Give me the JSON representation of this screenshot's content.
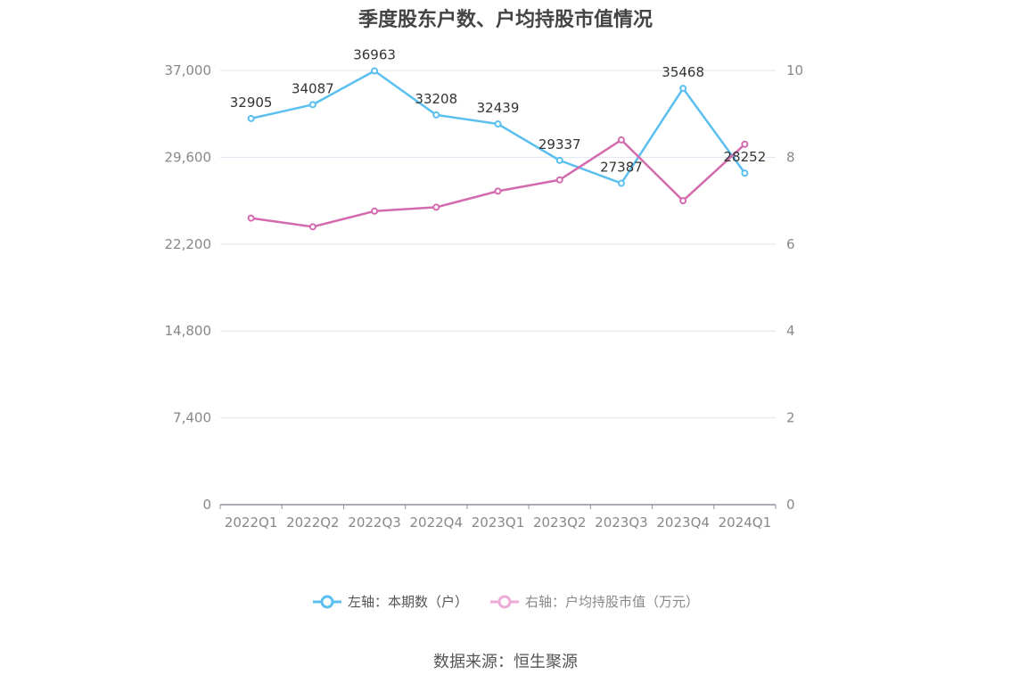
{
  "title": "季度股东户数、户均持股市值情况",
  "source": "数据来源：恒生聚源",
  "colors": {
    "left_series": "#5bbfef",
    "right_series": "#d46aae",
    "grid": "#e0e3ef",
    "axis": "#8c8fa8"
  },
  "chart_data": {
    "type": "line",
    "categories": [
      "2022Q1",
      "2022Q2",
      "2022Q3",
      "2022Q4",
      "2023Q1",
      "2023Q2",
      "2023Q3",
      "2023Q4",
      "2024Q1"
    ],
    "y_left": {
      "ticks": [
        "0",
        "7,400",
        "14,800",
        "22,200",
        "29,600",
        "37,000"
      ],
      "range": [
        0,
        37000
      ]
    },
    "y_right": {
      "ticks": [
        "0",
        "2",
        "4",
        "6",
        "8",
        "10"
      ],
      "range": [
        0,
        10
      ]
    },
    "series": [
      {
        "name": "左轴：本期数（户）",
        "axis": "left",
        "values": [
          32905,
          34087,
          36963,
          33208,
          32439,
          29337,
          27387,
          35468,
          28252
        ],
        "labels": [
          "32905",
          "34087",
          "36963",
          "33208",
          "32439",
          "29337",
          "27387",
          "35468",
          "28252"
        ]
      },
      {
        "name": "右轴：户均持股市值（万元）",
        "axis": "right",
        "values": [
          6.6,
          6.4,
          6.76,
          6.85,
          7.22,
          7.48,
          8.4,
          7.0,
          8.3
        ]
      }
    ],
    "legend_position": "bottom",
    "grid": true
  }
}
